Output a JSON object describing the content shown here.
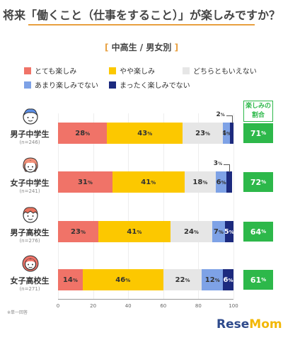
{
  "title": "将来「働くこと（仕事をすること）」が楽しみですか？",
  "subtitle": "中高生 / 男女別",
  "subtitle_brackets": [
    "[",
    "]"
  ],
  "legend": [
    {
      "label": "とても楽しみ",
      "color": "#f07368"
    },
    {
      "label": "やや楽しみ",
      "color": "#fcc800"
    },
    {
      "label": "どちらともいえない",
      "color": "#e6e6e6"
    },
    {
      "label": "あまり楽しみでない",
      "color": "#7ea2e6"
    },
    {
      "label": "まったく楽しみでない",
      "color": "#1c2a7e"
    }
  ],
  "fun_ratio_header": "楽しみの\n割合",
  "pct_unit": "%",
  "footnote": "※単一回答",
  "logo": {
    "part1": "Rese",
    "part2": "Mom"
  },
  "chart_data": {
    "type": "bar",
    "orientation": "horizontal",
    "stacked": true,
    "title": "将来「働くこと（仕事をすること）」が楽しみですか？",
    "subtitle": "中高生 / 男女別",
    "xlim": [
      0,
      100
    ],
    "xticks": [
      0,
      20,
      40,
      60,
      80,
      100
    ],
    "categories": [
      {
        "label": "男子中学生",
        "n": "(n=246)"
      },
      {
        "label": "女子中学生",
        "n": "(n=241)"
      },
      {
        "label": "男子高校生",
        "n": "(n=276)"
      },
      {
        "label": "女子高校生",
        "n": "(n=271)"
      }
    ],
    "series": [
      {
        "name": "とても楽しみ",
        "values": [
          28,
          31,
          23,
          14
        ]
      },
      {
        "name": "やや楽しみ",
        "values": [
          43,
          41,
          41,
          46
        ]
      },
      {
        "name": "どちらともいえない",
        "values": [
          23,
          18,
          24,
          22
        ]
      },
      {
        "name": "あまり楽しみでない",
        "values": [
          4,
          6,
          7,
          12
        ]
      },
      {
        "name": "まったく楽しみでない",
        "values": [
          2,
          3,
          5,
          6
        ]
      }
    ],
    "fun_ratio": [
      71,
      72,
      64,
      61
    ],
    "callouts": [
      {
        "row": 0,
        "series": 4,
        "text": "2"
      },
      {
        "row": 1,
        "series": 4,
        "text": "3"
      }
    ]
  }
}
